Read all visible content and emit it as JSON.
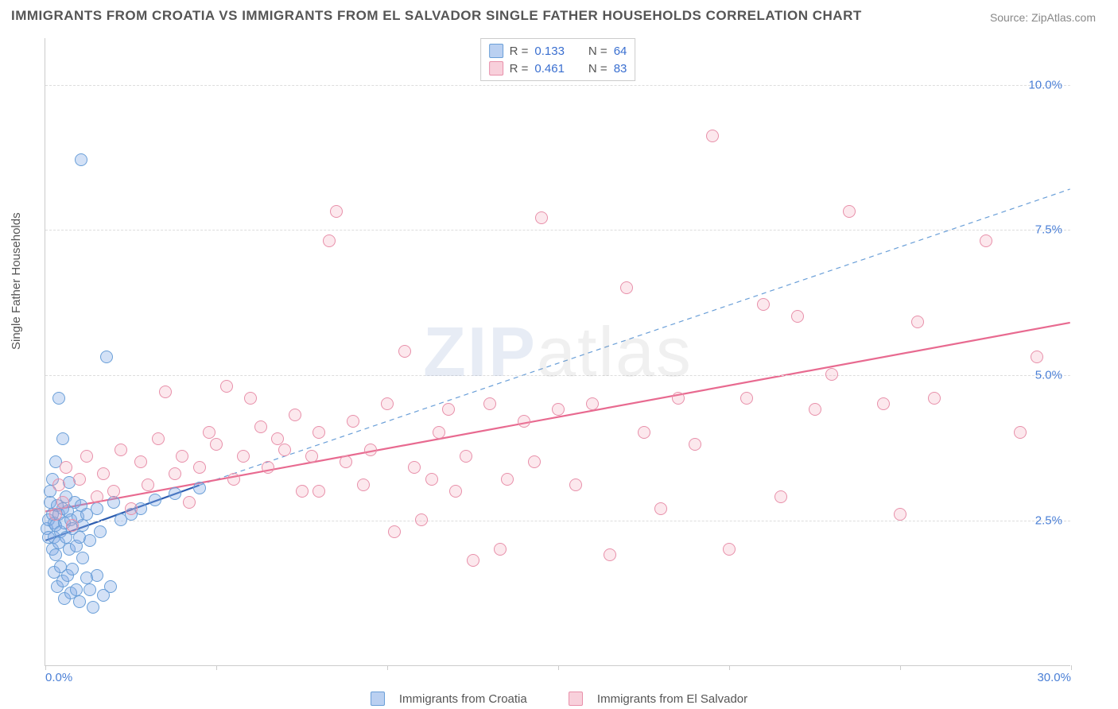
{
  "title": "IMMIGRANTS FROM CROATIA VS IMMIGRANTS FROM EL SALVADOR SINGLE FATHER HOUSEHOLDS CORRELATION CHART",
  "source_label": "Source:",
  "source_name": "ZipAtlas.com",
  "ylabel": "Single Father Households",
  "watermark_a": "ZIP",
  "watermark_b": "atlas",
  "chart": {
    "type": "scatter",
    "xlim": [
      0,
      30
    ],
    "ylim": [
      0,
      10.8
    ],
    "yticks": [
      {
        "v": 2.5,
        "label": "2.5%"
      },
      {
        "v": 5.0,
        "label": "5.0%"
      },
      {
        "v": 7.5,
        "label": "7.5%"
      },
      {
        "v": 10.0,
        "label": "10.0%"
      }
    ],
    "x_end_label": "30.0%",
    "x_start_label": "0.0%",
    "x_tick_positions": [
      0,
      5,
      10,
      15,
      20,
      25,
      30
    ],
    "background": "#ffffff",
    "grid_color": "#dddddd",
    "axis_color": "#cccccc",
    "tick_label_color": "#4a7fd6"
  },
  "series": [
    {
      "key": "croatia",
      "label": "Immigrants from Croatia",
      "color_fill": "rgba(130,170,230,0.35)",
      "color_stroke": "#6a9fd8",
      "marker_radius_px": 8,
      "R": "0.133",
      "N": "64",
      "trend": {
        "style": "solid",
        "color": "#2d5db0",
        "width": 2.2,
        "x1": 0,
        "y1": 2.15,
        "x2": 4.5,
        "y2": 3.1
      },
      "trend_ext": {
        "style": "dashed",
        "color": "#6a9fd8",
        "width": 1.2,
        "x1": 4.5,
        "y1": 3.1,
        "x2": 30,
        "y2": 8.2
      },
      "points": [
        [
          0.05,
          2.35
        ],
        [
          0.1,
          2.5
        ],
        [
          0.1,
          2.2
        ],
        [
          0.15,
          2.8
        ],
        [
          0.15,
          3.0
        ],
        [
          0.2,
          2.0
        ],
        [
          0.2,
          2.6
        ],
        [
          0.2,
          3.2
        ],
        [
          0.25,
          1.6
        ],
        [
          0.25,
          2.2
        ],
        [
          0.25,
          2.45
        ],
        [
          0.3,
          1.9
        ],
        [
          0.3,
          2.4
        ],
        [
          0.3,
          3.5
        ],
        [
          0.35,
          2.75
        ],
        [
          0.35,
          1.35
        ],
        [
          0.4,
          2.6
        ],
        [
          0.4,
          2.1
        ],
        [
          0.4,
          4.6
        ],
        [
          0.45,
          1.7
        ],
        [
          0.45,
          2.3
        ],
        [
          0.5,
          2.7
        ],
        [
          0.5,
          1.45
        ],
        [
          0.5,
          3.9
        ],
        [
          0.55,
          2.45
        ],
        [
          0.55,
          1.15
        ],
        [
          0.6,
          2.9
        ],
        [
          0.6,
          2.2
        ],
        [
          0.65,
          1.55
        ],
        [
          0.65,
          2.65
        ],
        [
          0.7,
          3.15
        ],
        [
          0.7,
          2.0
        ],
        [
          0.75,
          2.5
        ],
        [
          0.75,
          1.25
        ],
        [
          0.8,
          2.35
        ],
        [
          0.8,
          1.65
        ],
        [
          0.85,
          2.8
        ],
        [
          0.9,
          2.05
        ],
        [
          0.9,
          1.3
        ],
        [
          0.95,
          2.55
        ],
        [
          1.0,
          2.2
        ],
        [
          1.0,
          1.1
        ],
        [
          1.05,
          2.75
        ],
        [
          1.1,
          1.85
        ],
        [
          1.1,
          2.4
        ],
        [
          1.2,
          1.5
        ],
        [
          1.2,
          2.6
        ],
        [
          1.3,
          2.15
        ],
        [
          1.3,
          1.3
        ],
        [
          1.4,
          1.0
        ],
        [
          1.5,
          2.7
        ],
        [
          1.5,
          1.55
        ],
        [
          1.6,
          2.3
        ],
        [
          1.7,
          1.2
        ],
        [
          1.8,
          5.3
        ],
        [
          1.9,
          1.35
        ],
        [
          2.0,
          2.8
        ],
        [
          2.2,
          2.5
        ],
        [
          2.5,
          2.6
        ],
        [
          2.8,
          2.7
        ],
        [
          3.2,
          2.85
        ],
        [
          3.8,
          2.95
        ],
        [
          4.5,
          3.05
        ],
        [
          1.05,
          8.7
        ]
      ]
    },
    {
      "key": "elsalvador",
      "label": "Immigrants from El Salvador",
      "color_fill": "rgba(240,150,175,0.22)",
      "color_stroke": "#e890aa",
      "marker_radius_px": 8,
      "R": "0.461",
      "N": "83",
      "trend": {
        "style": "solid",
        "color": "#e86a90",
        "width": 2.2,
        "x1": 0,
        "y1": 2.65,
        "x2": 30,
        "y2": 5.9
      },
      "points": [
        [
          0.3,
          2.6
        ],
        [
          0.4,
          3.1
        ],
        [
          0.5,
          2.8
        ],
        [
          0.6,
          3.4
        ],
        [
          0.8,
          2.4
        ],
        [
          1.0,
          3.2
        ],
        [
          1.2,
          3.6
        ],
        [
          1.5,
          2.9
        ],
        [
          1.7,
          3.3
        ],
        [
          2.0,
          3.0
        ],
        [
          2.2,
          3.7
        ],
        [
          2.5,
          2.7
        ],
        [
          2.8,
          3.5
        ],
        [
          3.0,
          3.1
        ],
        [
          3.3,
          3.9
        ],
        [
          3.5,
          4.7
        ],
        [
          3.8,
          3.3
        ],
        [
          4.0,
          3.6
        ],
        [
          4.2,
          2.8
        ],
        [
          4.5,
          3.4
        ],
        [
          4.8,
          4.0
        ],
        [
          5.0,
          3.8
        ],
        [
          5.3,
          4.8
        ],
        [
          5.5,
          3.2
        ],
        [
          5.8,
          3.6
        ],
        [
          6.0,
          4.6
        ],
        [
          6.3,
          4.1
        ],
        [
          6.5,
          3.4
        ],
        [
          6.8,
          3.9
        ],
        [
          7.0,
          3.7
        ],
        [
          7.3,
          4.3
        ],
        [
          7.5,
          3.0
        ],
        [
          7.8,
          3.6
        ],
        [
          8.0,
          4.0
        ],
        [
          8.3,
          7.3
        ],
        [
          8.5,
          7.8
        ],
        [
          8.8,
          3.5
        ],
        [
          9.0,
          4.2
        ],
        [
          9.3,
          3.1
        ],
        [
          9.5,
          3.7
        ],
        [
          10.0,
          4.5
        ],
        [
          10.2,
          2.3
        ],
        [
          10.5,
          5.4
        ],
        [
          10.8,
          3.4
        ],
        [
          11.0,
          2.5
        ],
        [
          11.3,
          3.2
        ],
        [
          11.5,
          4.0
        ],
        [
          11.8,
          4.4
        ],
        [
          12.0,
          3.0
        ],
        [
          12.3,
          3.6
        ],
        [
          12.5,
          1.8
        ],
        [
          13.0,
          4.5
        ],
        [
          13.3,
          2.0
        ],
        [
          13.5,
          3.2
        ],
        [
          14.0,
          4.2
        ],
        [
          14.3,
          3.5
        ],
        [
          14.5,
          7.7
        ],
        [
          15.0,
          4.4
        ],
        [
          15.5,
          3.1
        ],
        [
          16.0,
          4.5
        ],
        [
          16.5,
          1.9
        ],
        [
          17.0,
          6.5
        ],
        [
          17.5,
          4.0
        ],
        [
          18.0,
          2.7
        ],
        [
          18.5,
          4.6
        ],
        [
          19.0,
          3.8
        ],
        [
          19.5,
          9.1
        ],
        [
          20.0,
          2.0
        ],
        [
          20.5,
          4.6
        ],
        [
          21.0,
          6.2
        ],
        [
          21.5,
          2.9
        ],
        [
          22.0,
          6.0
        ],
        [
          22.5,
          4.4
        ],
        [
          23.0,
          5.0
        ],
        [
          23.5,
          7.8
        ],
        [
          24.5,
          4.5
        ],
        [
          25.0,
          2.6
        ],
        [
          25.5,
          5.9
        ],
        [
          26.0,
          4.6
        ],
        [
          27.5,
          7.3
        ],
        [
          28.5,
          4.0
        ],
        [
          29.0,
          5.3
        ],
        [
          8.0,
          3.0
        ]
      ]
    }
  ],
  "legend_stat_labels": {
    "R": "R =",
    "N": "N ="
  }
}
